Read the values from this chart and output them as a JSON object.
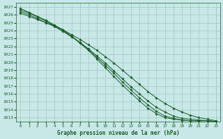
{
  "title": "Graphe pression niveau de la mer (hPa)",
  "background_color": "#c8e8e8",
  "grid_color": "#a0c8c0",
  "line_color": "#1a5c2a",
  "ylim": [
    1012.5,
    1027.5
  ],
  "xlim": [
    -0.5,
    23.5
  ],
  "yticks": [
    1013,
    1014,
    1015,
    1016,
    1017,
    1018,
    1019,
    1020,
    1021,
    1022,
    1023,
    1024,
    1025,
    1026,
    1027
  ],
  "xticks": [
    0,
    1,
    2,
    3,
    4,
    5,
    6,
    7,
    8,
    9,
    10,
    11,
    12,
    13,
    14,
    15,
    16,
    17,
    18,
    19,
    20,
    21,
    22,
    23
  ],
  "series": [
    [
      1026.2,
      1025.8,
      1025.4,
      1025.0,
      1024.6,
      1024.1,
      1023.5,
      1022.9,
      1022.2,
      1021.5,
      1020.7,
      1019.9,
      1019.0,
      1018.1,
      1017.2,
      1016.3,
      1015.5,
      1014.8,
      1014.2,
      1013.7,
      1013.3,
      1013.0,
      1012.8,
      1012.6
    ],
    [
      1026.4,
      1026.0,
      1025.5,
      1025.0,
      1024.5,
      1023.9,
      1023.2,
      1022.5,
      1021.7,
      1020.8,
      1019.9,
      1018.9,
      1017.9,
      1016.9,
      1016.0,
      1015.1,
      1014.3,
      1013.7,
      1013.2,
      1012.9,
      1012.8,
      1012.7,
      1012.6,
      1012.5
    ],
    [
      1026.6,
      1026.2,
      1025.7,
      1025.2,
      1024.6,
      1024.0,
      1023.3,
      1022.5,
      1021.6,
      1020.6,
      1019.6,
      1018.6,
      1017.5,
      1016.5,
      1015.5,
      1014.6,
      1013.8,
      1013.2,
      1012.9,
      1012.7,
      1012.6,
      1012.6,
      1012.6,
      1012.5
    ],
    [
      1026.8,
      1026.3,
      1025.8,
      1025.3,
      1024.7,
      1024.1,
      1023.3,
      1022.4,
      1021.5,
      1020.4,
      1019.3,
      1018.2,
      1017.1,
      1016.1,
      1015.1,
      1014.2,
      1013.5,
      1013.0,
      1012.8,
      1012.7,
      1012.6,
      1012.6,
      1012.6,
      1012.5
    ]
  ]
}
